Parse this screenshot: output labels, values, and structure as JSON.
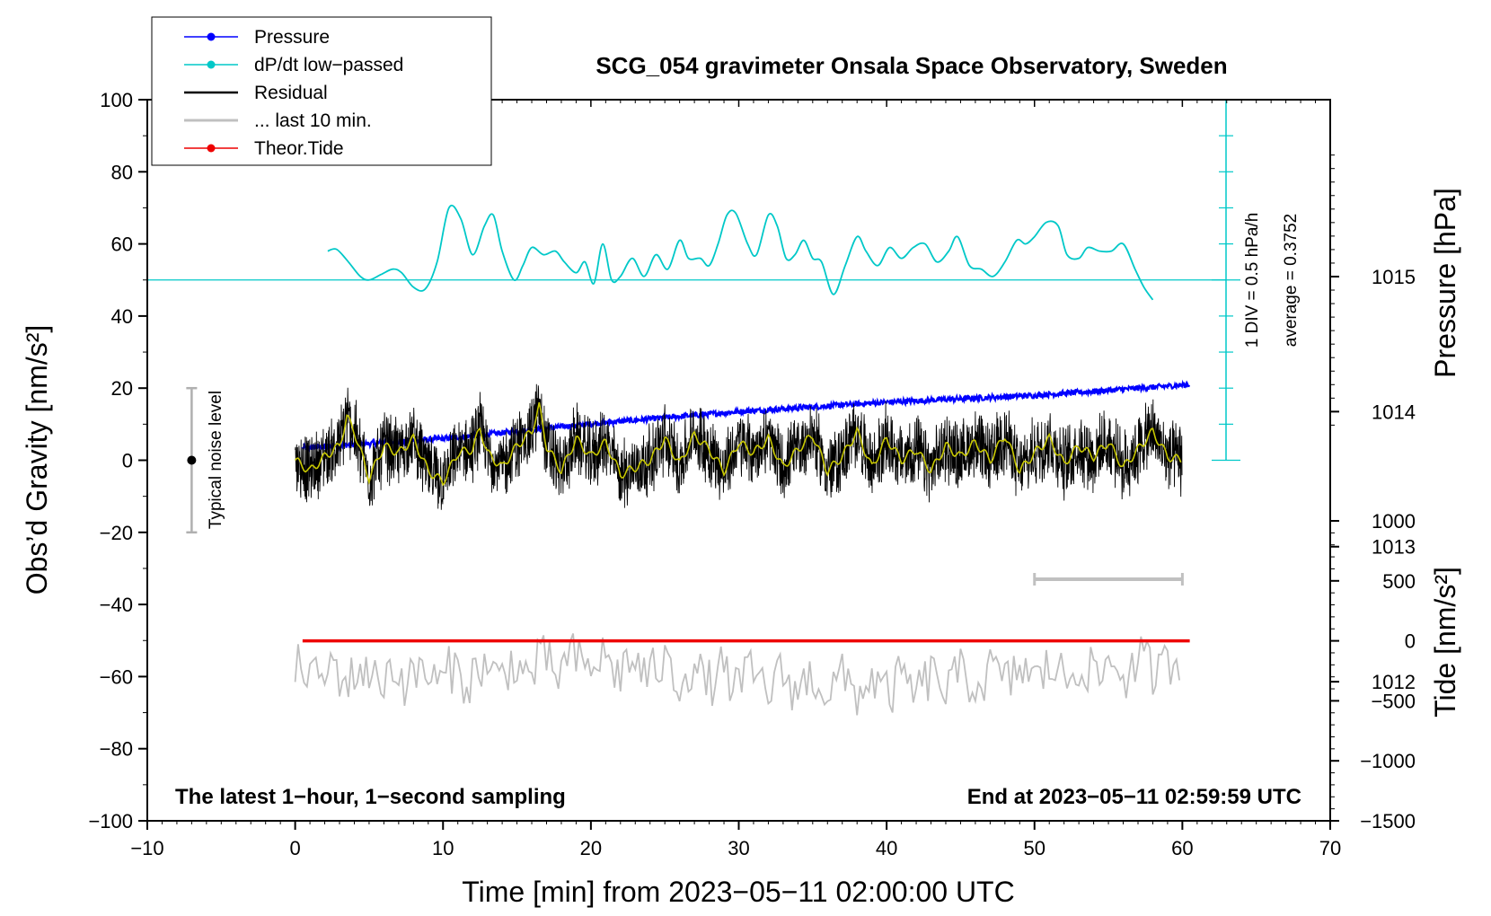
{
  "chart_data": {
    "type": "line",
    "title": "SCG_054 gravimeter Onsala Space Observatory, Sweden",
    "xlabel": "Time [min] from 2023−05−11 02:00:00 UTC",
    "ylabel_left": "Obs’d Gravity [nm/s²]",
    "ylabel_right_pressure": "Pressure [hPa]",
    "ylabel_right_tide": "Tide [nm/s²]",
    "xlim": [
      -10,
      70
    ],
    "ylim": [
      -100,
      100
    ],
    "x_ticks": [
      -10,
      0,
      10,
      20,
      30,
      40,
      50,
      60,
      70
    ],
    "x_tick_labels": [
      "−10",
      "0",
      "10",
      "20",
      "30",
      "40",
      "50",
      "60",
      "70"
    ],
    "y_ticks": [
      -100,
      -80,
      -60,
      -40,
      -20,
      0,
      20,
      40,
      60,
      80,
      100
    ],
    "y_tick_labels": [
      "−100",
      "−80",
      "−60",
      "−40",
      "−20",
      "0",
      "20",
      "40",
      "60",
      "80",
      "100"
    ],
    "pressure_axis": {
      "ticks": [
        1012,
        1013,
        1014,
        1015
      ],
      "tick_labels": [
        "1012",
        "1013",
        "1014",
        "1015"
      ],
      "range_hpa": [
        1010.97,
        1016.31
      ]
    },
    "tide_axis": {
      "ticks": [
        -1500,
        -1000,
        -500,
        0,
        500,
        1000
      ],
      "tick_labels": [
        "−1500",
        "−1000",
        "−500",
        "0",
        "500",
        "1000"
      ],
      "range": [
        -1500,
        1000
      ]
    },
    "footer_left": "The latest 1−hour, 1−second sampling",
    "footer_right": "End at 2023−05−11 02:59:59 UTC",
    "dpdt_scale_label": "1 DIV = 0.5 hPa/h",
    "dpdt_average_label": "average = 0.3752",
    "noise_label": "Typical noise level",
    "noise_bar": {
      "x": -7,
      "y": 0,
      "ymin": -20,
      "ymax": 20
    },
    "last10_bar": {
      "xmin": 50,
      "xmax": 60,
      "y": -33
    },
    "legend": [
      {
        "label": "Pressure",
        "color": "#0000ff",
        "marker": true
      },
      {
        "label": "dP/dt low−passed",
        "color": "#00c8c8",
        "marker": true
      },
      {
        "label": "Residual",
        "color": "#000000",
        "marker": false
      },
      {
        "label": "... last 10 min.",
        "color": "#c0c0c0",
        "marker": false
      },
      {
        "label": "Theor.Tide",
        "color": "#ee0000",
        "marker": true
      }
    ],
    "series": [
      {
        "name": "Pressure",
        "units": "hPa",
        "color": "#0000ff",
        "x": [
          0.5,
          10,
          20,
          30,
          40,
          50,
          60.5
        ],
        "y": [
          1013.73,
          1013.8,
          1013.91,
          1014.0,
          1014.07,
          1014.12,
          1014.2
        ]
      },
      {
        "name": "dP/dt low−passed",
        "units": "plot units (nm/s² frame)",
        "color": "#00c8c8",
        "baseline": 50,
        "x": [
          2.2,
          2.8,
          3.6,
          4.4,
          5.0,
          5.8,
          6.6,
          7.2,
          8.0,
          8.8,
          9.6,
          10.4,
          11.2,
          12.0,
          12.8,
          13.4,
          14.0,
          14.8,
          15.4,
          16.0,
          16.8,
          17.6,
          18.2,
          19.0,
          19.6,
          20.2,
          20.8,
          21.4,
          22.0,
          22.8,
          23.6,
          24.4,
          25.2,
          26.0,
          26.6,
          27.4,
          28.0,
          28.6,
          29.2,
          29.8,
          30.6,
          31.2,
          32.0,
          32.6,
          33.2,
          33.8,
          34.4,
          35.0,
          35.6,
          36.4,
          37.2,
          38.0,
          38.6,
          39.4,
          40.2,
          41.0,
          41.8,
          42.6,
          43.4,
          44.2,
          44.8,
          45.6,
          46.4,
          47.2,
          48.0,
          48.8,
          49.4,
          50.0,
          50.8,
          51.6,
          52.2,
          53.0,
          53.6,
          54.4,
          55.2,
          56.0,
          56.8,
          57.4,
          58.0
        ],
        "y": [
          58,
          58.5,
          55,
          51,
          50,
          51.5,
          53,
          52,
          48,
          47.5,
          55,
          70,
          67,
          57,
          65,
          68,
          58,
          50,
          54,
          59,
          57,
          58,
          55,
          52,
          55,
          49,
          60,
          50,
          51,
          56,
          51,
          57,
          53,
          61,
          56,
          56,
          54,
          60,
          68,
          68.5,
          60,
          57,
          68,
          65,
          56,
          57,
          61,
          56,
          55,
          46,
          54,
          62,
          58,
          54,
          59,
          56,
          59,
          60,
          55,
          58,
          62,
          54,
          53,
          51,
          55,
          61,
          60,
          62,
          66,
          65,
          57,
          56,
          59,
          58,
          58,
          60,
          53,
          48,
          44.5
        ]
      },
      {
        "name": "Residual",
        "units": "nm/s²",
        "color": "#000000",
        "sampling": "1 second",
        "x": [
          0,
          5,
          10,
          15,
          20,
          25,
          30,
          35,
          40,
          45,
          50,
          55,
          60
        ],
        "y": [
          0,
          5,
          -6,
          8,
          2,
          0,
          2,
          0,
          4,
          2,
          0,
          -1,
          2
        ]
      },
      {
        "name": "Residual smoothed",
        "units": "nm/s²",
        "color": "#c8c800",
        "x": [
          0,
          1,
          2,
          3,
          3.5,
          4,
          5,
          6,
          7,
          8,
          9,
          10,
          11,
          12,
          12.5,
          13,
          14,
          15,
          16,
          16.5,
          17,
          18,
          19,
          20,
          21,
          22,
          23,
          24,
          25,
          26,
          27,
          28,
          29,
          30,
          31,
          32,
          33,
          34,
          35,
          36,
          37,
          38,
          39,
          40,
          41,
          42,
          43,
          44,
          45,
          46,
          47,
          48,
          49,
          50,
          51,
          52,
          53,
          54,
          55,
          56,
          57,
          58,
          59,
          60
        ],
        "y": [
          0,
          -3,
          1,
          4,
          12,
          8,
          -5,
          4,
          2,
          6,
          -3,
          -6,
          2,
          3,
          9,
          2,
          -2,
          4,
          8,
          15,
          4,
          -3,
          6,
          1,
          5,
          -4,
          -2,
          0,
          6,
          -1,
          7,
          3,
          -3,
          5,
          2,
          6,
          -2,
          3,
          7,
          -3,
          1,
          8,
          -2,
          6,
          0,
          3,
          -3,
          4,
          1,
          5,
          0,
          7,
          -3,
          2,
          6,
          -1,
          4,
          1,
          5,
          -2,
          3,
          8,
          1,
          0
        ]
      },
      {
        "name": "... last 10 min.",
        "units": "nm/s²",
        "color": "#c0c0c0",
        "x": [
          0,
          10,
          20,
          30,
          40,
          50,
          60
        ],
        "y": [
          -59,
          -60,
          -56,
          -61,
          -63,
          -59,
          -57
        ]
      },
      {
        "name": "Theor.Tide",
        "units": "nm/s² (tide axis)",
        "color": "#ee0000",
        "x": [
          0.5,
          60.5
        ],
        "y": [
          0,
          0
        ]
      }
    ]
  }
}
